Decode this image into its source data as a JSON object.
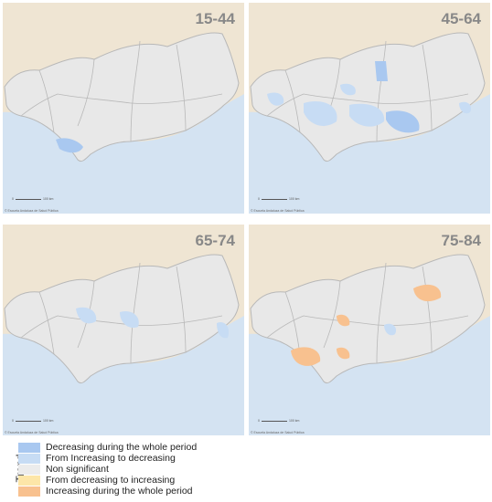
{
  "colors": {
    "land_outside": "#efe5d3",
    "sea": "#d4e3f2",
    "region": "#e8e8e8",
    "border": "#b8b8b8",
    "decreasing_whole": "#a9c8f0",
    "increasing_to_decreasing": "#c7dcf4",
    "non_significant": "#ececec",
    "decreasing_to_increasing": "#fde6a8",
    "increasing_whole": "#f8c18f"
  },
  "panels": [
    {
      "label": "15-44",
      "credit": "© Escuela Andaluza de Salud Pública",
      "scale": "100 km"
    },
    {
      "label": "45-64",
      "credit": "© Escuela Andaluza de Salud Pública",
      "scale": "100 km"
    },
    {
      "label": "65-74",
      "credit": "© Escuela Andaluza de Salud Pública",
      "scale": "100 km"
    },
    {
      "label": "75-84",
      "credit": "© Escuela Andaluza de Salud Pública",
      "scale": "100 km"
    }
  ],
  "legend": {
    "title": "Trend",
    "items": [
      {
        "label": "Decreasing  during the whole  period",
        "color": "#a9c8f0"
      },
      {
        "label": "From Increasing to decreasing",
        "color": "#c7dcf4"
      },
      {
        "label": "Non significant",
        "color": "#ececec"
      },
      {
        "label": "From decreasing to increasing",
        "color": "#fde6a8"
      },
      {
        "label": "Increasing during the whole period",
        "color": "#f8c18f"
      }
    ]
  }
}
